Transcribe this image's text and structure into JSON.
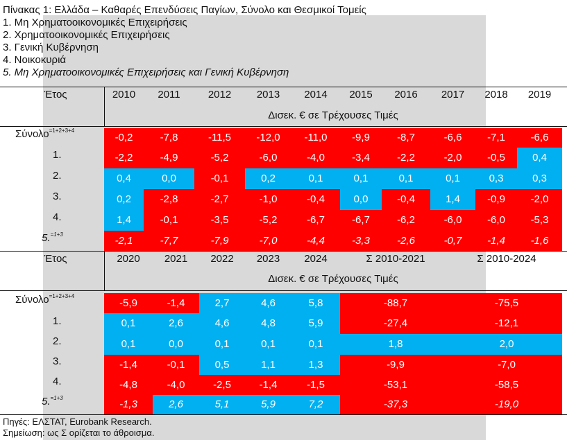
{
  "title": "Πίνακας 1: Ελλάδα – Καθαρές Επενδύσεις Παγίων, Σύνολο και Θεσμικοί Τομείς",
  "legend": [
    "1. Μη Χρηματοοικονομικές Επιχειρήσεις",
    "2. Χρηματοοικονομικές Επιχειρήσεις",
    "3. Γενική Κυβέρνηση",
    "4. Νοικοκυριά",
    "5. Μη Χρηματοοικονομικές Επιχειρήσεις και Γενική Κυβέρνηση"
  ],
  "units": "Δισεκ. € σε Τρέχουσες Τιμές",
  "row_labels": {
    "total": "Σύνολο",
    "total_sup": "=1+2+3+4",
    "r1": "1.",
    "r2": "2.",
    "r3": "3.",
    "r4": "4.",
    "r5": "5.",
    "r5_sup": "=1+3"
  },
  "table1": {
    "corner": "Έτος",
    "years": [
      "2010",
      "2011",
      "2012",
      "2013",
      "2014",
      "2015",
      "2016",
      "2017",
      "2018",
      "2019"
    ],
    "rows": [
      [
        "-0,2",
        "-7,8",
        "-11,5",
        "-12,0",
        "-11,0",
        "-9,9",
        "-8,7",
        "-6,6",
        "-7,1",
        "-6,6"
      ],
      [
        "-2,2",
        "-4,9",
        "-5,2",
        "-6,0",
        "-4,0",
        "-3,4",
        "-2,2",
        "-2,0",
        "-0,5",
        "0,4"
      ],
      [
        "0,4",
        "0,0",
        "-0,1",
        "0,2",
        "0,1",
        "0,1",
        "0,1",
        "0,1",
        "0,3",
        "0,3"
      ],
      [
        "0,2",
        "-2,8",
        "-2,7",
        "-1,0",
        "-0,4",
        "0,0",
        "-0,4",
        "1,4",
        "-0,9",
        "-2,0"
      ],
      [
        "1,4",
        "-0,1",
        "-3,5",
        "-5,2",
        "-6,7",
        "-6,7",
        "-6,2",
        "-6,0",
        "-6,0",
        "-5,3"
      ],
      [
        "-2,1",
        "-7,7",
        "-7,9",
        "-7,0",
        "-4,4",
        "-3,3",
        "-2,6",
        "-0,7",
        "-1,4",
        "-1,6"
      ]
    ]
  },
  "table2": {
    "corner": "Έτος",
    "years": [
      "2020",
      "2021",
      "2022",
      "2023",
      "2024"
    ],
    "sum_headers": [
      "Σ 2010-2021",
      "Σ 2010-2024"
    ],
    "rows": [
      [
        "-5,9",
        "-1,4",
        "2,7",
        "4,6",
        "5,8",
        "-88,7",
        "-75,5"
      ],
      [
        "0,1",
        "2,6",
        "4,6",
        "4,8",
        "5,9",
        "-27,4",
        "-12,1"
      ],
      [
        "0,1",
        "0,0",
        "0,1",
        "0,1",
        "0,1",
        "1,8",
        "2,0"
      ],
      [
        "-1,4",
        "-0,1",
        "0,5",
        "1,1",
        "1,3",
        "-9,9",
        "-7,0"
      ],
      [
        "-4,8",
        "-4,0",
        "-2,5",
        "-1,4",
        "-1,5",
        "-53,1",
        "-58,5"
      ],
      [
        "-1,3",
        "2,6",
        "5,1",
        "5,9",
        "7,2",
        "-37,3",
        "-19,0"
      ]
    ]
  },
  "footer": {
    "sources": "Πηγές: ΕΛΣΤΑΤ, Eurobank Research.",
    "note": "Σημείωση: ως Σ ορίζεται το άθροισμα."
  },
  "colors": {
    "negative": "#ff0000",
    "positive": "#00b0f0",
    "panel": "#d9d9d9"
  }
}
